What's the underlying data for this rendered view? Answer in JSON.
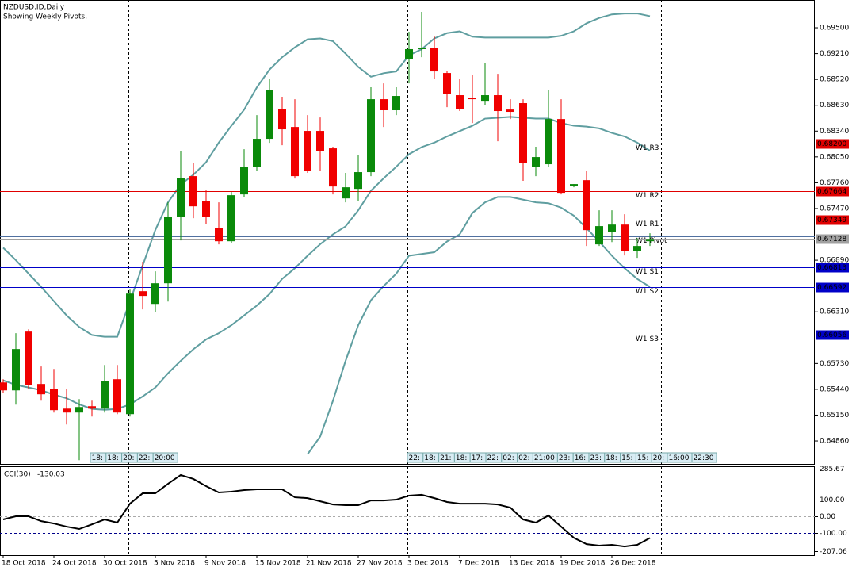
{
  "chart_data": [
    {
      "type": "candlestick",
      "title": "NZDUSD.ID,Daily",
      "subtitle": "Showing Weekly Pivots.",
      "categories": [
        "18 Oct 2018",
        null,
        null,
        null,
        "24 Oct 2018",
        null,
        null,
        null,
        "30 Oct 2018",
        null,
        null,
        null,
        "5 Nov 2018",
        null,
        null,
        null,
        "9 Nov 2018",
        null,
        null,
        null,
        "15 Nov 2018",
        null,
        null,
        null,
        "21 Nov 2018",
        null,
        null,
        null,
        "27 Nov 2018",
        null,
        null,
        null,
        "3 Dec 2018",
        null,
        null,
        null,
        "7 Dec 2018",
        null,
        null,
        null,
        "13 Dec 2018",
        null,
        null,
        null,
        "19 Dec 2018",
        null,
        null,
        null,
        "26 Dec 2018",
        null,
        null,
        null
      ],
      "open": [
        0.65517,
        0.65428,
        0.66088,
        0.655,
        0.65446,
        0.65223,
        0.65179,
        0.6525,
        0.65223,
        0.65553,
        0.65161,
        0.66542,
        0.66399,
        0.66631,
        0.6738,
        0.67834,
        0.67558,
        0.67255,
        0.67103,
        0.67629,
        0.67941,
        0.68253,
        0.68591,
        0.68386,
        0.68342,
        0.68342,
        0.68146,
        0.67584,
        0.67691,
        0.67879,
        0.68698,
        0.68574,
        0.69144,
        0.6926,
        0.69277,
        0.68992,
        0.68743,
        0.68716,
        0.6868,
        0.68743,
        0.68582,
        0.68654,
        0.67941,
        0.67968,
        0.68475,
        0.67727,
        0.67789,
        0.67068,
        0.6721,
        0.6729,
        0.66996,
        0.67103
      ],
      "high": [
        0.65553,
        0.6607,
        0.66114,
        0.65696,
        0.65669,
        0.65446,
        0.6533,
        0.65312,
        0.65713,
        0.65713,
        0.6656,
        0.66872,
        0.66765,
        0.6754,
        0.68119,
        0.67985,
        0.67674,
        0.6754,
        0.67656,
        0.68137,
        0.6852,
        0.68921,
        0.68725,
        0.68698,
        0.6852,
        0.68493,
        0.68164,
        0.6787,
        0.68075,
        0.68832,
        0.68876,
        0.68832,
        0.69456,
        0.69678,
        0.69411,
        0.6901,
        0.68921,
        0.68966,
        0.69099,
        0.68983,
        0.68698,
        0.68698,
        0.68164,
        0.68805,
        0.68698,
        0.67745,
        0.67896,
        0.67451,
        0.67451,
        0.67406,
        0.67139,
        0.67192
      ],
      "low": [
        0.65402,
        0.65268,
        0.65446,
        0.65312,
        0.65179,
        0.65045,
        0.64644,
        0.65134,
        0.65179,
        0.65161,
        0.65134,
        0.66337,
        0.6631,
        0.66426,
        0.67112,
        0.67362,
        0.67299,
        0.67068,
        0.67086,
        0.67602,
        0.67896,
        0.68208,
        0.68181,
        0.67807,
        0.6787,
        0.67896,
        0.67629,
        0.6754,
        0.67558,
        0.67834,
        0.68386,
        0.6852,
        0.68876,
        0.6917,
        0.68921,
        0.68609,
        0.68565,
        0.68431,
        0.68627,
        0.68226,
        0.68475,
        0.67781,
        0.67834,
        0.67941,
        0.67629,
        0.67709,
        0.6705,
        0.6705,
        0.67094,
        0.66943,
        0.66916,
        0.6705
      ],
      "close": [
        0.65428,
        0.65892,
        0.65491,
        0.65384,
        0.65206,
        0.65179,
        0.65241,
        0.65223,
        0.65535,
        0.65179,
        0.66515,
        0.66489,
        0.66631,
        0.6738,
        0.67816,
        0.67495,
        0.6738,
        0.67103,
        0.6762,
        0.67941,
        0.68253,
        0.68805,
        0.6836,
        0.67834,
        0.67896,
        0.68119,
        0.67718,
        0.67709,
        0.67879,
        0.68698,
        0.68574,
        0.68734,
        0.6926,
        0.69277,
        0.6901,
        0.68761,
        0.68591,
        0.68698,
        0.68743,
        0.68565,
        0.68556,
        0.67985,
        0.68048,
        0.68475,
        0.67647,
        0.67745,
        0.67228,
        0.67273,
        0.6729,
        0.66996,
        0.6705,
        0.67128
      ],
      "up_color": "#0a8a0a",
      "down_color": "#f00000",
      "bollinger": {
        "color": "#5f9ea0",
        "upper": [
          0.6703,
          0.6689,
          0.6674,
          0.6659,
          0.6643,
          0.6627,
          0.6614,
          0.6605,
          0.6603,
          0.6603,
          0.6643,
          0.6683,
          0.6723,
          0.6754,
          0.6774,
          0.6785,
          0.6799,
          0.6821,
          0.684,
          0.6858,
          0.6883,
          0.6903,
          0.6917,
          0.6928,
          0.6937,
          0.6938,
          0.6935,
          0.6921,
          0.6906,
          0.6895,
          0.6899,
          0.6901,
          0.6919,
          0.6926,
          0.6938,
          0.6944,
          0.6946,
          0.694,
          0.6939,
          0.6939,
          0.6939,
          0.6939,
          0.6939,
          0.6939,
          0.6941,
          0.6946,
          0.6955,
          0.6961,
          0.6965,
          0.6966,
          0.6966,
          0.6963
        ],
        "middle": [
          0.6554,
          0.6549,
          0.6546,
          0.6543,
          0.6538,
          0.6534,
          0.6527,
          0.6522,
          0.6521,
          0.6522,
          0.6527,
          0.6536,
          0.6546,
          0.6562,
          0.6576,
          0.6589,
          0.66,
          0.6607,
          0.6616,
          0.6627,
          0.6638,
          0.6651,
          0.6668,
          0.668,
          0.6694,
          0.6707,
          0.6718,
          0.6727,
          0.6745,
          0.6767,
          0.6781,
          0.6794,
          0.6808,
          0.6816,
          0.6821,
          0.6828,
          0.6834,
          0.684,
          0.6848,
          0.6849,
          0.685,
          0.6849,
          0.6848,
          0.6848,
          0.6843,
          0.684,
          0.6839,
          0.6837,
          0.6832,
          0.6828,
          0.6821,
          0.6812
        ],
        "lower": [
          null,
          null,
          null,
          null,
          null,
          null,
          null,
          null,
          null,
          null,
          null,
          null,
          null,
          null,
          null,
          null,
          null,
          null,
          null,
          null,
          null,
          null,
          null,
          null,
          0.6471,
          0.6491,
          0.6531,
          0.6576,
          0.6616,
          0.6644,
          0.666,
          0.6674,
          0.6694,
          0.6696,
          0.6698,
          0.671,
          0.6718,
          0.6742,
          0.6754,
          0.676,
          0.676,
          0.6757,
          0.6754,
          0.6753,
          0.6748,
          0.6739,
          0.6725,
          0.671,
          0.6694,
          0.668,
          0.6668,
          0.6659
        ]
      },
      "ylim": [
        0.64602,
        0.69812
      ],
      "yticks": [
        {
          "value": 0.695,
          "label": "0.69500"
        },
        {
          "value": 0.6921,
          "label": "0.69210"
        },
        {
          "value": 0.6892,
          "label": "0.68920"
        },
        {
          "value": 0.6863,
          "label": "0.68630"
        },
        {
          "value": 0.6834,
          "label": "0.68340"
        },
        {
          "value": 0.6805,
          "label": "0.68050"
        },
        {
          "value": 0.6776,
          "label": "0.67760"
        },
        {
          "value": 0.6747,
          "label": "0.67470"
        },
        {
          "value": 0.6689,
          "label": "0.66890"
        },
        {
          "value": 0.6631,
          "label": "0.66310"
        },
        {
          "value": 0.6573,
          "label": "0.65730"
        },
        {
          "value": 0.6544,
          "label": "0.65440"
        },
        {
          "value": 0.6515,
          "label": "0.65150"
        },
        {
          "value": 0.6486,
          "label": "0.64860"
        }
      ],
      "pivots": [
        {
          "name": "W1 R3",
          "value": 0.682,
          "label": "0.68200",
          "color": "#e00000"
        },
        {
          "name": "W1 R2",
          "value": 0.67664,
          "label": "0.67664",
          "color": "#e00000"
        },
        {
          "name": "W1 R1",
          "value": 0.67349,
          "label": "0.67349",
          "color": "#e00000"
        },
        {
          "name": "W1 Pivot",
          "value": 0.67155,
          "color": "#5070a0"
        },
        {
          "name": "W1 S1",
          "value": 0.66813,
          "label": "0.66813",
          "color": "#0000c8"
        },
        {
          "name": "W1 S2",
          "value": 0.66592,
          "label": "0.66592",
          "color": "#0000c8"
        },
        {
          "name": "W1 S3",
          "value": 0.66056,
          "label": "0.66056",
          "color": "#0000c8"
        }
      ],
      "last_price": {
        "value": 0.67128,
        "label": "0.67128",
        "color": "#a0a0a0"
      },
      "time_labels": [
        [
          "18:",
          "18:",
          "20:",
          "22:",
          "20:00"
        ],
        [
          "22:",
          "18:",
          "21:",
          "18:",
          "17:",
          "22:",
          "02:",
          "02:",
          "21:00",
          "23:",
          "16:",
          "23:",
          "18:",
          "15:",
          "15:",
          "20:",
          "16:00",
          "22:30"
        ]
      ]
    },
    {
      "type": "line",
      "title": "CCI(30)",
      "color": "#000000",
      "values": [
        -19,
        0,
        0,
        -29,
        -43,
        -62,
        -76,
        -48,
        -19,
        -38,
        76,
        138,
        138,
        195,
        248,
        224,
        181,
        143,
        148,
        157,
        162,
        162,
        162,
        114,
        109,
        90,
        71,
        67,
        67,
        95,
        95,
        100,
        124,
        129,
        109,
        86,
        76,
        76,
        76,
        71,
        52,
        -19,
        -38,
        5,
        -62,
        -129,
        -167,
        -176,
        -171,
        -181,
        -171,
        -130.03
      ],
      "ylim": [
        -233,
        300
      ],
      "yticks": [
        285.67,
        {
          "value": 100,
          "label": "100.00"
        },
        {
          "value": 0,
          "label": "0.00"
        },
        {
          "value": -100,
          "label": "-100.00"
        },
        -207.06
      ]
    }
  ]
}
